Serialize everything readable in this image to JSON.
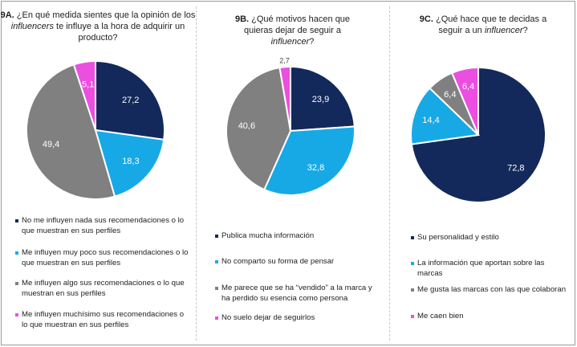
{
  "colors": {
    "navy": "#13295b",
    "blue": "#17a9e6",
    "gray": "#808080",
    "pink": "#ea4fe0",
    "white": "#ffffff",
    "dark_label": "#404040"
  },
  "chart_data": [
    {
      "type": "pie",
      "title_prefix": "9A.",
      "title_parts": [
        "¿En qué medida sientes que la opinión de los ",
        "influencers",
        " te influye a la hora de adquirir un producto?"
      ],
      "categories": [
        "No me influyen nada sus recomendaciones o lo que muestran en sus perfiles",
        "Me influyen muy poco sus recomendaciones o lo que muestran en sus perfiles",
        "Me influyen algo sus recomendaciones o lo que muestran en sus perfiles",
        "Me influyen muchísimo sus recomendaciones o lo que muestran en sus perfiles"
      ],
      "values": [
        27.2,
        18.3,
        49.4,
        5.1
      ],
      "labels": [
        "27,2",
        "18,3",
        "49,4",
        "5,1"
      ],
      "colors": [
        "#13295b",
        "#17a9e6",
        "#808080",
        "#ea4fe0"
      ],
      "legend_placement": "bottom"
    },
    {
      "type": "pie",
      "title_prefix": "9B.",
      "title_parts": [
        "¿Qué motivos hacen que quieras dejar de seguir a ",
        "influencer",
        "?"
      ],
      "categories": [
        "Publica mucha información",
        "No comparto su forma de pensar",
        "Me parece que se ha “vendido” a la marca y ha perdido su esencia como persona",
        "No suelo dejar de seguirlos"
      ],
      "values": [
        23.9,
        32.8,
        40.6,
        2.7
      ],
      "labels": [
        "23,9",
        "32,8",
        "40,6",
        "2,7"
      ],
      "colors": [
        "#13295b",
        "#17a9e6",
        "#808080",
        "#ea4fe0"
      ],
      "legend_placement": "bottom"
    },
    {
      "type": "pie",
      "title_prefix": "9C.",
      "title_parts": [
        "¿Qué hace que te decidas a seguir a un ",
        "influencer",
        "?"
      ],
      "categories": [
        "Su personalidad y estilo",
        "La información que aportan sobre las marcas",
        "Me gusta las marcas con las que colaboran",
        "Me caen bien"
      ],
      "values": [
        72.8,
        14.4,
        6.4,
        6.4
      ],
      "labels": [
        "72,8",
        "14,4",
        "6,4",
        "6,4"
      ],
      "colors": [
        "#13295b",
        "#17a9e6",
        "#808080",
        "#ea4fe0"
      ],
      "legend_placement": "bottom"
    }
  ]
}
